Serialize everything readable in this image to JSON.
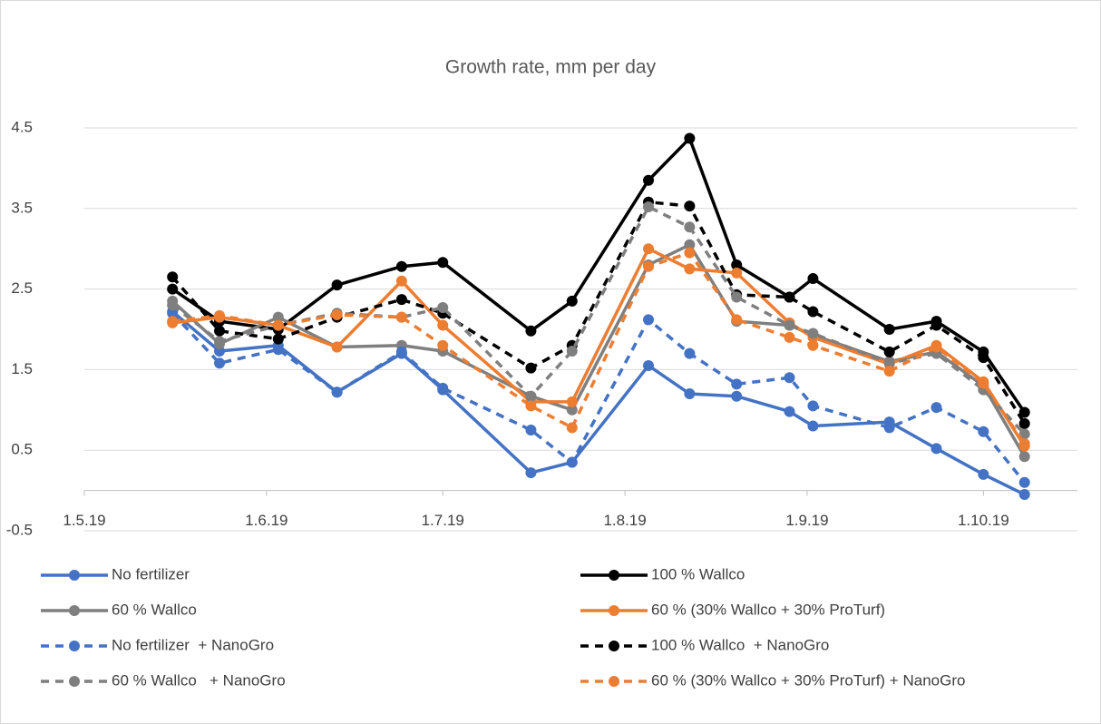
{
  "chart_data": {
    "type": "line",
    "title": "Growth rate, mm per day",
    "x": [
      "2019-05-16",
      "2019-05-24",
      "2019-06-03",
      "2019-06-13",
      "2019-06-24",
      "2019-07-01",
      "2019-07-16",
      "2019-07-23",
      "2019-08-05",
      "2019-08-12",
      "2019-08-20",
      "2019-08-29",
      "2019-09-02",
      "2019-09-15",
      "2019-09-23",
      "2019-10-01",
      "2019-10-08"
    ],
    "xlim": [
      "2019-05-01",
      "2019-10-17"
    ],
    "xticks": [
      {
        "value": "2019-05-01",
        "label": "1.5.19"
      },
      {
        "value": "2019-06-01",
        "label": "1.6.19"
      },
      {
        "value": "2019-07-01",
        "label": "1.7.19"
      },
      {
        "value": "2019-08-01",
        "label": "1.8.19"
      },
      {
        "value": "2019-09-01",
        "label": "1.9.19"
      },
      {
        "value": "2019-10-01",
        "label": "1.10.19"
      }
    ],
    "ylim": [
      -0.5,
      4.5
    ],
    "yticks": [
      -0.5,
      0.5,
      1.5,
      2.5,
      3.5,
      4.5
    ],
    "grid": true,
    "legend": "bottom",
    "series": [
      {
        "name": "No fertilizer",
        "color": "#4472c4",
        "dashed": false,
        "values": [
          2.22,
          1.73,
          1.8,
          1.22,
          1.7,
          1.25,
          0.22,
          0.35,
          1.55,
          1.2,
          1.17,
          0.98,
          0.8,
          0.85,
          0.52,
          0.2,
          -0.05
        ]
      },
      {
        "name": "100 % Wallco",
        "color": "#000000",
        "dashed": false,
        "values": [
          2.5,
          2.1,
          2.0,
          2.55,
          2.78,
          2.83,
          1.98,
          2.35,
          3.85,
          4.37,
          2.8,
          2.4,
          2.63,
          2.0,
          2.1,
          1.72,
          0.97
        ]
      },
      {
        "name": "60 % Wallco",
        "color": "#7f7f7f",
        "dashed": false,
        "values": [
          2.35,
          1.82,
          2.15,
          1.78,
          1.8,
          1.73,
          1.17,
          1.0,
          2.8,
          3.05,
          2.1,
          2.05,
          1.93,
          1.6,
          1.72,
          1.3,
          0.42
        ]
      },
      {
        "name": "60 % (30% Wallco + 30% ProTurf)",
        "color": "#ed7d31",
        "dashed": false,
        "values": [
          2.08,
          2.15,
          2.05,
          1.78,
          2.6,
          2.05,
          1.1,
          1.1,
          3.0,
          2.75,
          2.7,
          2.08,
          1.9,
          1.57,
          1.8,
          1.35,
          0.55
        ]
      },
      {
        "name": "No fertilizer  + NanoGro",
        "color": "#4472c4",
        "dashed": true,
        "values": [
          2.2,
          1.58,
          1.75,
          1.22,
          1.72,
          1.27,
          0.75,
          0.35,
          2.12,
          1.7,
          1.32,
          1.4,
          1.05,
          0.78,
          1.03,
          0.73,
          0.1
        ]
      },
      {
        "name": "100 % Wallco  + NanoGro",
        "color": "#000000",
        "dashed": true,
        "values": [
          2.65,
          1.98,
          1.88,
          2.15,
          2.37,
          2.2,
          1.52,
          1.8,
          3.58,
          3.53,
          2.43,
          2.4,
          2.22,
          1.72,
          2.05,
          1.65,
          0.83
        ]
      },
      {
        "name": "60 % Wallco   + NanoGro",
        "color": "#7f7f7f",
        "dashed": true,
        "values": [
          2.3,
          1.85,
          2.05,
          2.2,
          2.15,
          2.27,
          1.17,
          1.73,
          3.52,
          3.27,
          2.4,
          2.05,
          1.95,
          1.58,
          1.7,
          1.25,
          0.7
        ]
      },
      {
        "name": "60 % (30% Wallco + 30% ProTurf) + NanoGro",
        "color": "#ed7d31",
        "dashed": true,
        "values": [
          2.1,
          2.17,
          2.05,
          2.18,
          2.15,
          1.8,
          1.05,
          0.78,
          2.78,
          2.95,
          2.12,
          1.9,
          1.8,
          1.48,
          1.78,
          1.33,
          0.58
        ]
      }
    ]
  }
}
